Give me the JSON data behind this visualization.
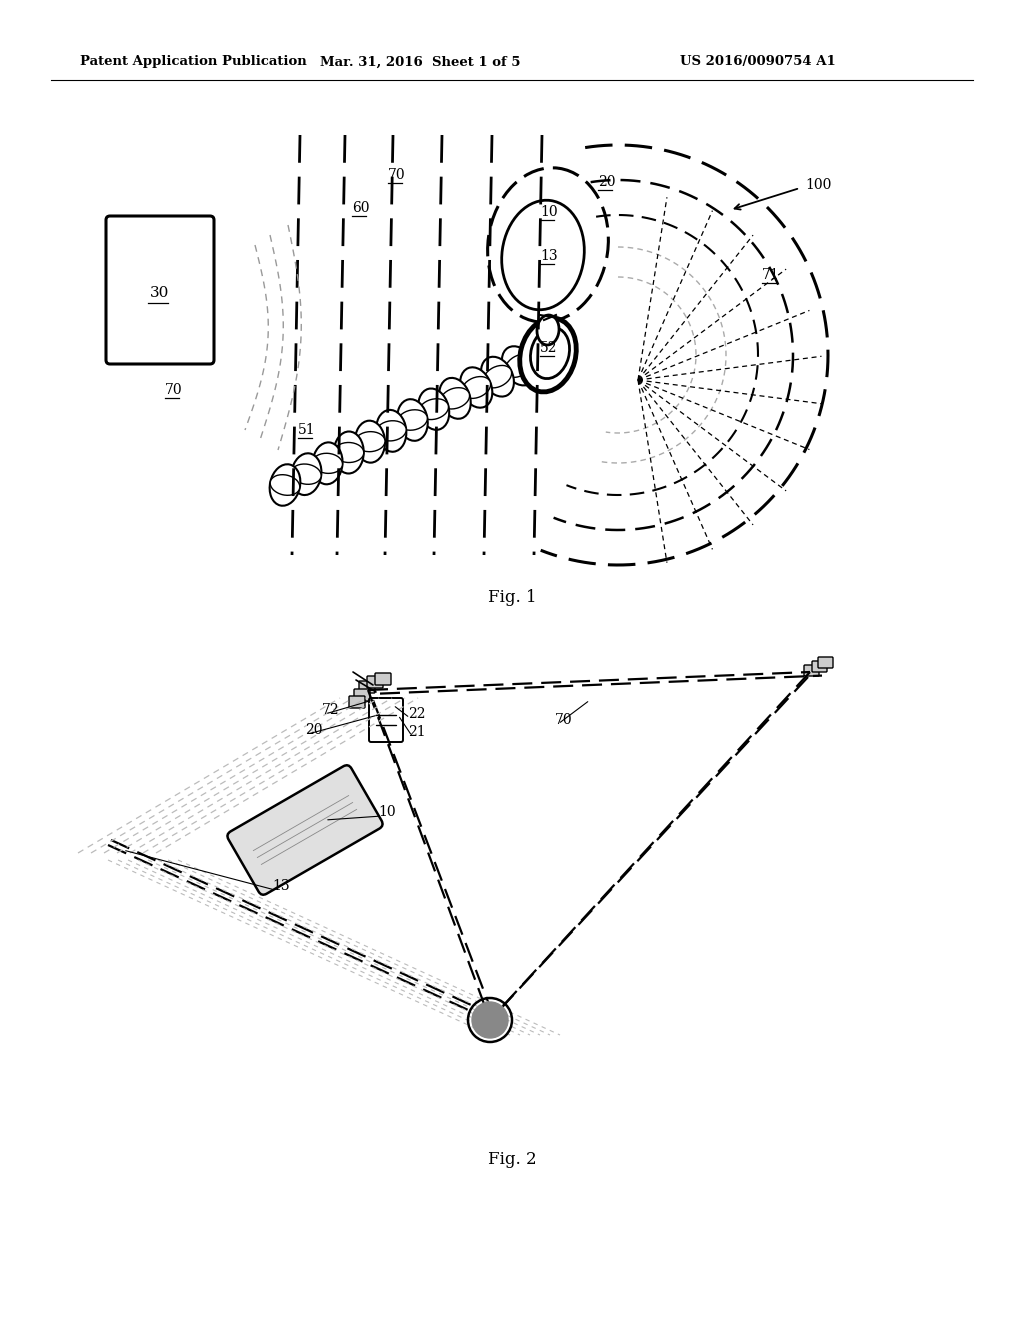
{
  "bg_color": "#ffffff",
  "header_text1": "Patent Application Publication",
  "header_text2": "Mar. 31, 2016  Sheet 1 of 5",
  "header_text3": "US 2016/0090754 A1",
  "fig1_caption": "Fig. 1",
  "fig2_caption": "Fig. 2"
}
